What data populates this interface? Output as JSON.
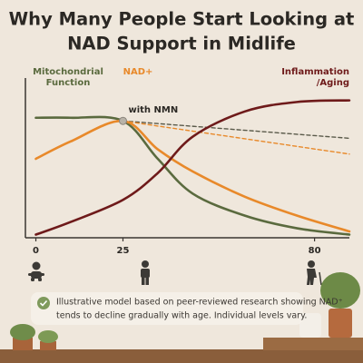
{
  "chart_data": {
    "type": "line",
    "title_lines": [
      "Why Many People Start Looking at",
      "NAD Support in Midlife"
    ],
    "x": [
      0,
      10,
      25,
      35,
      45,
      60,
      75,
      90
    ],
    "xlim": [
      -3,
      90
    ],
    "xticks": [
      0,
      25,
      80
    ],
    "ylim": [
      0,
      100
    ],
    "series": [
      {
        "name_lines": [
          "Mitochondrial",
          "Function"
        ],
        "color": "#5a6a3e",
        "values": [
          76,
          76,
          74,
          50,
          28,
          14,
          6,
          2
        ]
      },
      {
        "name_lines": [
          "NAD+"
        ],
        "color": "#e8892a",
        "values": [
          50,
          61,
          74,
          56,
          42,
          26,
          14,
          4
        ]
      },
      {
        "name_lines": [
          "Inflammation",
          "/Aging"
        ],
        "color": "#6e1a1a",
        "values": [
          2,
          10,
          24,
          41,
          64,
          80,
          86,
          87
        ]
      }
    ],
    "projection": {
      "label": "with NMN",
      "x": [
        25,
        90
      ],
      "series": [
        {
          "color": "#5a5a4a",
          "values": [
            74,
            63
          ]
        },
        {
          "color": "#e8892a",
          "values": [
            74,
            53
          ]
        }
      ]
    },
    "note_lines": [
      "Illustrative model based on peer-reviewed research showing NAD⁺",
      "tends to decline gradually with age. Individual levels vary."
    ]
  }
}
